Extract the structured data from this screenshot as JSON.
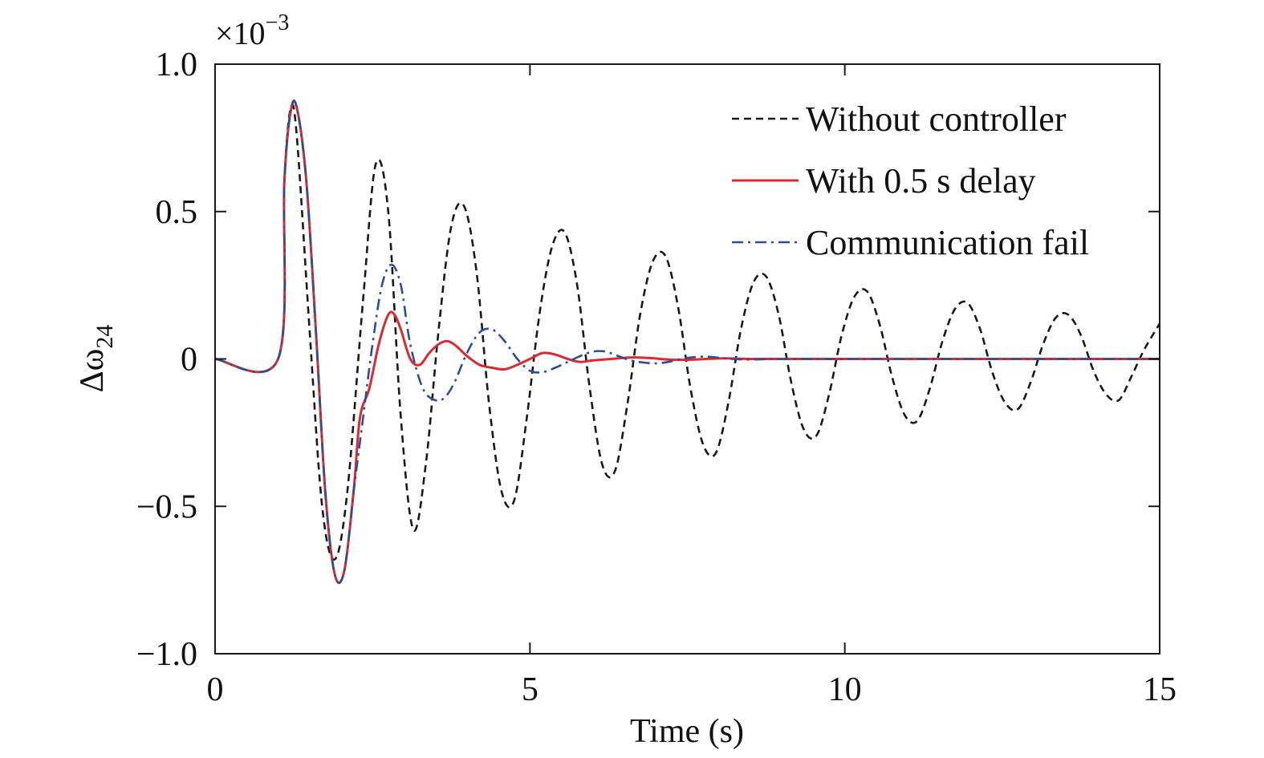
{
  "chart_data": {
    "type": "line",
    "xlabel": "Time (s)",
    "ylabel_main": "Δω",
    "ylabel_sub": "24",
    "y_scale_base": "×10",
    "y_scale_exp": "−3",
    "xlim": [
      0,
      15
    ],
    "ylim": [
      -1.0,
      1.0
    ],
    "x_ticks": [
      0,
      5,
      10,
      15
    ],
    "x_tick_labels": [
      "0",
      "5",
      "10",
      "15"
    ],
    "y_ticks": [
      1.0,
      0.5,
      0,
      -0.5,
      -1.0
    ],
    "y_tick_labels": [
      "1.0",
      "0.5",
      "0",
      "−0.5",
      "−1.0"
    ],
    "grid": false,
    "legend_position": "top-right",
    "series": [
      {
        "name": "Without controller",
        "color": "#1a1a1a",
        "dash": "dashed",
        "x": [
          0,
          1.0,
          1.1,
          1.2,
          1.3,
          1.5,
          1.7,
          1.9,
          2.1,
          2.35,
          2.55,
          2.75,
          2.95,
          3.15,
          3.35,
          3.55,
          3.75,
          3.95,
          4.15,
          4.35,
          4.55,
          4.75,
          4.95,
          5.15,
          5.35,
          5.55,
          5.75,
          5.95,
          6.15,
          6.35,
          6.55,
          6.75,
          6.95,
          7.15,
          7.35,
          7.55,
          7.75,
          7.95,
          8.15,
          8.35,
          8.55,
          8.75,
          8.95,
          9.15,
          9.35,
          9.55,
          9.75,
          9.95,
          10.15,
          10.35,
          10.55,
          10.75,
          10.95,
          11.15,
          11.35,
          11.55,
          11.75,
          11.95,
          12.15,
          12.35,
          12.55,
          12.75,
          12.95,
          13.15,
          13.35,
          13.55,
          13.75,
          13.95,
          14.15,
          14.35,
          14.55,
          14.75,
          15.0
        ],
        "y": [
          0,
          0,
          0.6,
          0.85,
          0.75,
          0.1,
          -0.5,
          -0.68,
          -0.45,
          0.2,
          0.66,
          0.5,
          -0.2,
          -0.58,
          -0.35,
          0.1,
          0.45,
          0.52,
          0.3,
          -0.15,
          -0.45,
          -0.48,
          -0.2,
          0.15,
          0.38,
          0.43,
          0.25,
          -0.1,
          -0.36,
          -0.38,
          -0.15,
          0.15,
          0.33,
          0.35,
          0.18,
          -0.1,
          -0.29,
          -0.32,
          -0.15,
          0.1,
          0.26,
          0.28,
          0.15,
          -0.08,
          -0.24,
          -0.26,
          -0.12,
          0.08,
          0.21,
          0.23,
          0.12,
          -0.06,
          -0.19,
          -0.21,
          -0.1,
          0.06,
          0.17,
          0.19,
          0.1,
          -0.05,
          -0.15,
          -0.17,
          -0.08,
          0.05,
          0.14,
          0.15,
          0.08,
          -0.04,
          -0.12,
          -0.14,
          -0.06,
          0.03,
          0.12
        ]
      },
      {
        "name": "With 0.5 s delay",
        "color": "#dc2b30",
        "dash": "solid",
        "x": [
          0,
          1.0,
          1.1,
          1.2,
          1.3,
          1.45,
          1.6,
          1.75,
          1.9,
          2.05,
          2.2,
          2.3,
          2.45,
          2.6,
          2.75,
          2.85,
          2.95,
          3.1,
          3.25,
          3.4,
          3.55,
          3.7,
          3.85,
          4.0,
          4.2,
          4.4,
          4.6,
          4.8,
          5.0,
          5.2,
          5.4,
          5.6,
          5.8,
          6.0,
          6.3,
          6.6,
          6.9,
          7.2,
          7.5,
          7.8,
          8.1,
          8.5,
          9.0,
          10.0,
          15.0
        ],
        "y": [
          0,
          0,
          0.6,
          0.84,
          0.85,
          0.6,
          0.1,
          -0.45,
          -0.73,
          -0.72,
          -0.45,
          -0.2,
          -0.1,
          0.05,
          0.15,
          0.15,
          0.1,
          0.0,
          -0.02,
          0.02,
          0.05,
          0.06,
          0.04,
          0.01,
          -0.02,
          -0.03,
          -0.035,
          -0.02,
          0.0,
          0.02,
          0.015,
          0.0,
          -0.01,
          -0.005,
          0.0,
          0.005,
          0.003,
          -0.002,
          -0.003,
          0.0,
          0.002,
          0.0,
          0.0,
          0.0,
          0.0
        ]
      },
      {
        "name": "Communication fail",
        "color": "#2f4e9a",
        "dash": "dashdot",
        "x": [
          0,
          1.0,
          1.1,
          1.2,
          1.3,
          1.45,
          1.6,
          1.75,
          1.9,
          2.05,
          2.2,
          2.35,
          2.5,
          2.65,
          2.8,
          2.95,
          3.1,
          3.3,
          3.5,
          3.65,
          3.8,
          4.0,
          4.2,
          4.4,
          4.6,
          4.8,
          5.0,
          5.2,
          5.4,
          5.6,
          5.8,
          6.0,
          6.2,
          6.4,
          6.6,
          6.8,
          7.0,
          7.2,
          7.4,
          7.6,
          7.8,
          8.0,
          8.2,
          8.5,
          9.0,
          10.0,
          15.0
        ],
        "y": [
          0,
          0,
          0.6,
          0.84,
          0.85,
          0.6,
          0.1,
          -0.45,
          -0.73,
          -0.72,
          -0.45,
          -0.2,
          0.05,
          0.25,
          0.32,
          0.25,
          0.05,
          -0.1,
          -0.14,
          -0.13,
          -0.08,
          0.02,
          0.09,
          0.1,
          0.06,
          0.0,
          -0.04,
          -0.045,
          -0.03,
          -0.01,
          0.01,
          0.025,
          0.025,
          0.01,
          -0.005,
          -0.012,
          -0.015,
          -0.01,
          0.0,
          0.006,
          0.008,
          0.004,
          0.0,
          -0.002,
          0.0,
          0.0,
          0.0
        ]
      }
    ]
  }
}
